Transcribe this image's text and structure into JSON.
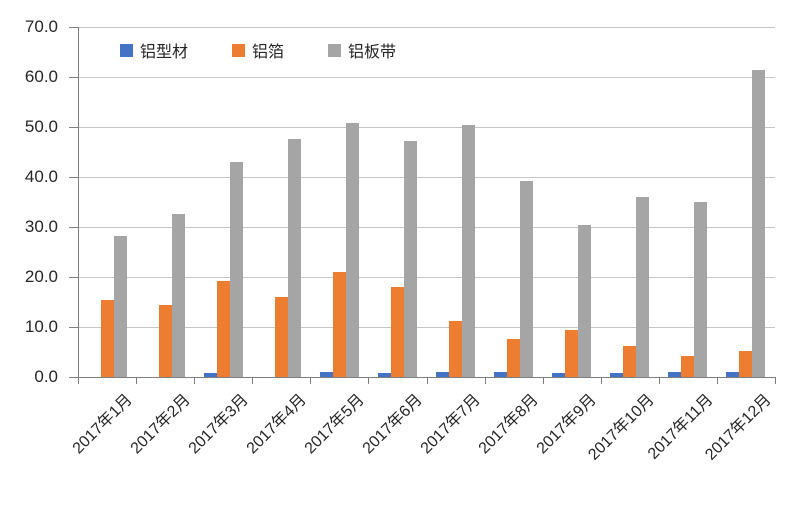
{
  "chart_data": {
    "type": "bar",
    "title": "",
    "xlabel": "",
    "ylabel": "",
    "categories": [
      "2017年1月",
      "2017年2月",
      "2017年3月",
      "2017年4月",
      "2017年5月",
      "2017年6月",
      "2017年7月",
      "2017年8月",
      "2017年9月",
      "2017年10月",
      "2017年11月",
      "2017年12月"
    ],
    "series": [
      {
        "name": "铝型材",
        "color": "#4472C4",
        "values": [
          0,
          0,
          0.9,
          0,
          1.0,
          0.9,
          1.0,
          1.0,
          0.8,
          0.8,
          1.0,
          1.0
        ]
      },
      {
        "name": "铝箔",
        "color": "#ED7D31",
        "values": [
          15.4,
          14.4,
          19.3,
          16.1,
          21.0,
          18.1,
          11.3,
          7.7,
          9.4,
          6.2,
          4.2,
          5.3
        ]
      },
      {
        "name": "铝板带",
        "color": "#A5A5A5",
        "values": [
          28.2,
          32.6,
          43.0,
          47.6,
          50.8,
          47.2,
          50.5,
          39.3,
          30.5,
          36.0,
          35.0,
          61.5
        ]
      }
    ],
    "ylim": [
      0,
      70
    ],
    "y_tick_step": 10,
    "y_tick_labels": [
      "0.0",
      "10.0",
      "20.0",
      "30.0",
      "40.0",
      "50.0",
      "60.0",
      "70.0"
    ],
    "grid": true,
    "legend_position": "top-inside"
  },
  "colors": {
    "grid": "#C6C6C6",
    "axis": "#7F7F7F",
    "text": "#262626",
    "background": "#FFFFFF"
  }
}
